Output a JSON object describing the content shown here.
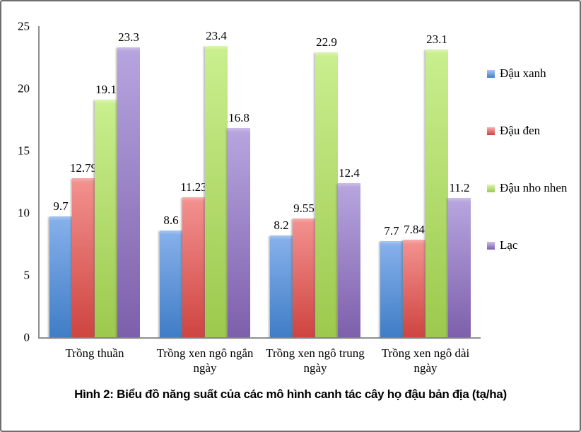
{
  "chart_data": {
    "type": "bar",
    "title": "Hình 2: Biểu đồ năng suất của các mô hình canh tác cây họ đậu bản địa (tạ/ha)",
    "xlabel": "",
    "ylabel": "",
    "unit": "tạ/ha",
    "categories": [
      "Trồng thuần",
      "Trồng xen ngô ngắn ngày",
      "Trồng xen ngô trung ngày",
      "Trồng xen ngô dài ngày"
    ],
    "series": [
      {
        "name": "Đậu xanh",
        "values": [
          9.7,
          8.6,
          8.2,
          7.7
        ],
        "color_cap": "#a9c7f2",
        "color_top": "#85afea",
        "color_bottom": "#3f7dc6"
      },
      {
        "name": "Đậu đen",
        "values": [
          12.79,
          11.23,
          9.55,
          7.84
        ],
        "color_cap": "#f7aeac",
        "color_top": "#f2908e",
        "color_bottom": "#ce4440"
      },
      {
        "name": "Đậu nho nhen",
        "values": [
          19.1,
          23.4,
          22.9,
          23.1
        ],
        "color_cap": "#ddf5b4",
        "color_top": "#c9ee8e",
        "color_bottom": "#9cc94d"
      },
      {
        "name": "Lạc",
        "values": [
          23.3,
          16.8,
          12.4,
          11.2
        ],
        "color_cap": "#cbbee8",
        "color_top": "#b6a4de",
        "color_bottom": "#7d5fab"
      }
    ],
    "y_ticks": [
      0,
      5,
      10,
      15,
      20,
      25
    ],
    "ylim": [
      0,
      25
    ],
    "grid": false,
    "value_labels": true,
    "legend_position": "right",
    "axis_color": "#8f8f8f",
    "border_color": "#6f6f6f"
  }
}
